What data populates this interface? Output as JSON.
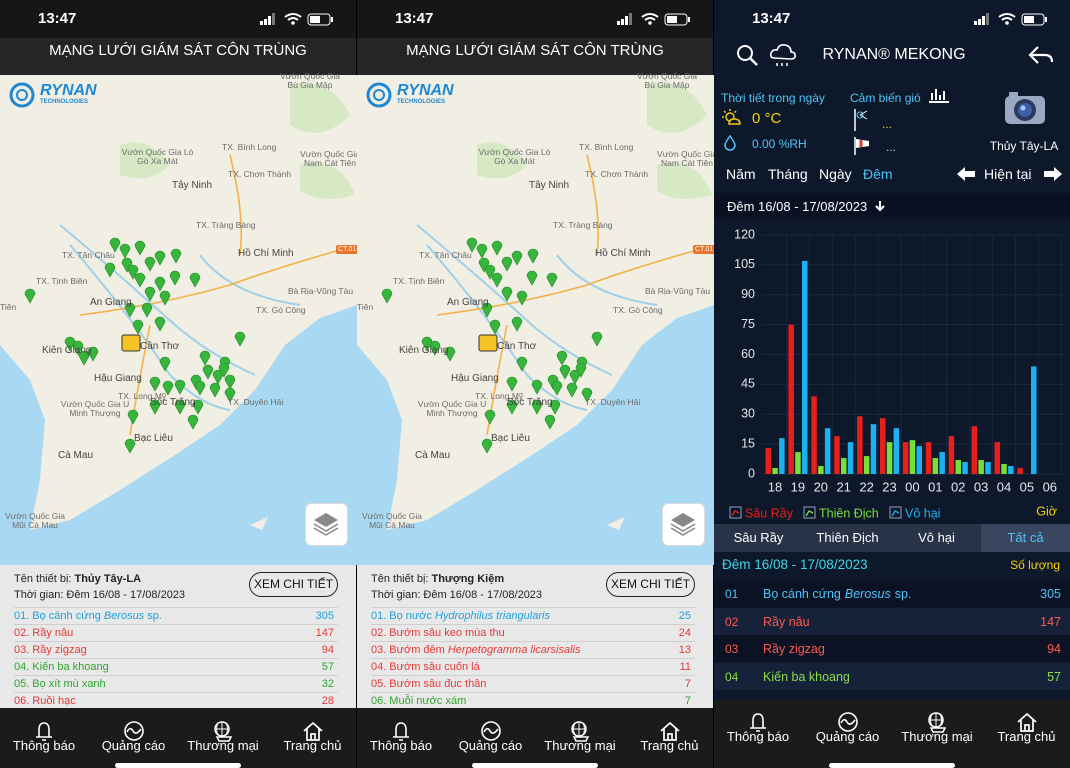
{
  "status_time": "13:47",
  "nav": [
    "Thông báo",
    "Quảng cáo",
    "Thương mại",
    "Trang chủ"
  ],
  "map_screen_title": "MẠNG LƯỚI GIÁM SÁT CÔN TRÙNG",
  "logo": {
    "brand": "RYNAN",
    "sub": "TECHNOLOGIES"
  },
  "map_labels": [
    "Vườn Quốc Gia Bù Gia Mập",
    "TX. Bình Long",
    "Vườn Quốc Gia Lò Gò Xa Mát",
    "TX. Chơn Thành",
    "Vườn Quốc Gia Nam Cát Tiên",
    "Tây Ninh",
    "TX. Trảng Bàng",
    "TX. Tân Châu",
    "Hồ Chí Minh",
    "CT.01",
    "TX. Tịnh Biên",
    "An Giang",
    "Bà Rịa-Vũng Tàu",
    "Tiên",
    "TX. Gò Công",
    "Kiên Giang",
    "Cần Thơ",
    "Hậu Giang",
    "TX. Long Mỹ",
    "Sóc Trăng",
    "TX. Duyên Hải",
    "Vườn Quốc Gia U Minh Thượng",
    "Bạc Liêu",
    "Cà Mau",
    "Vườn Quốc Gia Mũi Cà Mau"
  ],
  "device_label": "Tên thiết bị:",
  "time_label": "Thời gian:",
  "detail_button": "XEM CHI TIẾT",
  "map_screens": [
    {
      "device": "Thủy Tây-LA",
      "time": "Đêm 16/08 - 17/08/2023",
      "items": [
        {
          "index": "01.",
          "name": "Bọ cánh cứng",
          "species": "Berosus",
          "suffix": "sp.",
          "count": 305,
          "color": "#1e9fdc"
        },
        {
          "index": "02.",
          "name": "Rầy nâu",
          "count": 147,
          "color": "#e53935"
        },
        {
          "index": "03.",
          "name": "Rầy zigzag",
          "count": 94,
          "color": "#e53935"
        },
        {
          "index": "04.",
          "name": "Kiến ba khoang",
          "count": 57,
          "color": "#2ea52e"
        },
        {
          "index": "05.",
          "name": "Bọ xít mù xanh",
          "count": 32,
          "color": "#2ea52e"
        },
        {
          "index": "06.",
          "name": "Ruồi hạc",
          "count": 28,
          "color": "#e53935"
        }
      ]
    },
    {
      "device": "Thượng Kiệm",
      "time": "Đêm 16/08 - 17/08/2023",
      "items": [
        {
          "index": "01.",
          "name": "Bọ nước",
          "species": "Hydrophilus triangularis",
          "count": 25,
          "color": "#1e9fdc"
        },
        {
          "index": "02.",
          "name": "Bướm sâu keo mùa thu",
          "count": 24,
          "color": "#e53935"
        },
        {
          "index": "03.",
          "name": "Bướm đêm",
          "species": "Herpetogramma licarsisalis",
          "count": 13,
          "color": "#e53935"
        },
        {
          "index": "04.",
          "name": "Bướm sâu cuốn lá",
          "count": 11,
          "color": "#e53935"
        },
        {
          "index": "05.",
          "name": "Bướm sâu đục thân",
          "count": 7,
          "color": "#e53935"
        },
        {
          "index": "06.",
          "name": "Muỗi nước xám",
          "count": 7,
          "color": "#2ea52e"
        }
      ]
    }
  ],
  "detail_screen": {
    "title": "RYNAN® MEKONG",
    "weather_title": "Thời tiết trong ngày",
    "temperature": "0 °C",
    "humidity": "0.00 %RH",
    "wind_title": "Cảm biến gió",
    "wind_speed": "...",
    "wind_direction": "...",
    "device": "Thủy Tây-LA",
    "periods": [
      "Năm",
      "Tháng",
      "Ngày",
      "Đêm"
    ],
    "active_period": 3,
    "current": "Hiện tại",
    "date_range": "Đêm 16/08 - 17/08/2023",
    "filters": [
      "Sâu Rầy",
      "Thiên Địch",
      "Vô hại",
      "Tất cả"
    ],
    "active_filter": 3,
    "list_title": "Đêm 16/08 - 17/08/2023",
    "list_count_label": "Số lượng",
    "items": [
      {
        "index": "01",
        "name": "Bọ cánh cứng",
        "species": "Berosus",
        "suffix": "sp.",
        "count": 305,
        "color": "#4fc3f7"
      },
      {
        "index": "02",
        "name": "Rầy nâu",
        "count": 147,
        "color": "#ff5a4f"
      },
      {
        "index": "03",
        "name": "Rầy zigzag",
        "count": 94,
        "color": "#ff5a4f"
      },
      {
        "index": "04",
        "name": "Kiến ba khoang",
        "count": 57,
        "color": "#8bdc4a"
      }
    ]
  },
  "chart_data": {
    "type": "bar",
    "x_label": "Giờ",
    "categories": [
      "18",
      "19",
      "20",
      "21",
      "22",
      "23",
      "00",
      "01",
      "02",
      "03",
      "04",
      "05",
      "06"
    ],
    "series": [
      {
        "name": "Sâu Rầy",
        "color": "#e8201c",
        "values": [
          13,
          75,
          39,
          19,
          29,
          28,
          16,
          16,
          19,
          24,
          16,
          3,
          0
        ]
      },
      {
        "name": "Thiên Địch",
        "color": "#78e03a",
        "values": [
          3,
          11,
          4,
          8,
          9,
          16,
          17,
          8,
          7,
          7,
          5,
          0,
          0
        ]
      },
      {
        "name": "Vô hại",
        "color": "#1cb2f2",
        "values": [
          18,
          107,
          23,
          16,
          25,
          23,
          14,
          11,
          6,
          6,
          4,
          54,
          0
        ]
      }
    ],
    "ylim": [
      0,
      120
    ],
    "yticks": [
      0,
      15,
      30,
      45,
      60,
      75,
      90,
      105,
      120
    ],
    "grid": true
  }
}
